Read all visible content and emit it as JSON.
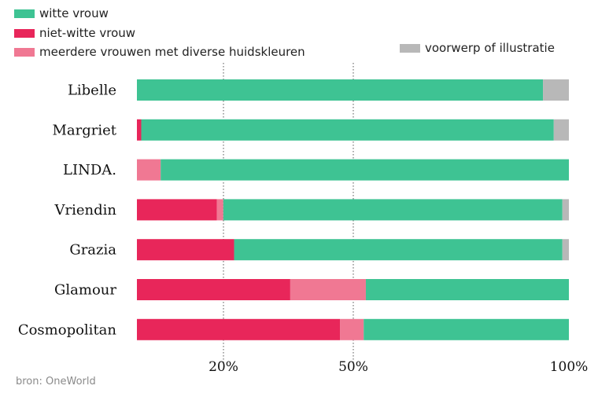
{
  "legend": [
    {
      "label": "witte vrouw",
      "color": "#3ec393"
    },
    {
      "label": "niet-witte vrouw",
      "color": "#e8265a"
    },
    {
      "label": "meerdere vrouwen met diverse huidskleuren",
      "color": "#f07893"
    },
    {
      "label": "voorwerp of illustratie",
      "color": "#b8b8b8"
    }
  ],
  "source": "bron: OneWorld",
  "chart_data": {
    "type": "bar",
    "orientation": "horizontal",
    "stacked": true,
    "categories": [
      "Libelle",
      "Margriet",
      "LINDA.",
      "Vriendin",
      "Grazia",
      "Glamour",
      "Cosmopolitan"
    ],
    "series": [
      {
        "name": "niet-witte vrouw",
        "color": "#e8265a",
        "values": [
          0,
          1,
          0,
          18.5,
          22.5,
          35.5,
          47
        ]
      },
      {
        "name": "meerdere vrouwen met diverse huidskleuren",
        "color": "#f07893",
        "values": [
          0,
          0,
          5.5,
          1.5,
          0,
          17.5,
          5.5
        ]
      },
      {
        "name": "witte vrouw",
        "color": "#3ec393",
        "values": [
          94,
          95.5,
          94.5,
          78.5,
          76,
          47,
          47.5
        ]
      },
      {
        "name": "voorwerp of illustratie",
        "color": "#b8b8b8",
        "values": [
          6,
          3.5,
          0,
          1.5,
          1.5,
          0,
          0
        ]
      }
    ],
    "x_ticks": [
      "20%",
      "50%",
      "100%"
    ],
    "reference_lines": [
      20,
      50
    ],
    "xlim": [
      0,
      100
    ],
    "legend_position": "top-left"
  }
}
